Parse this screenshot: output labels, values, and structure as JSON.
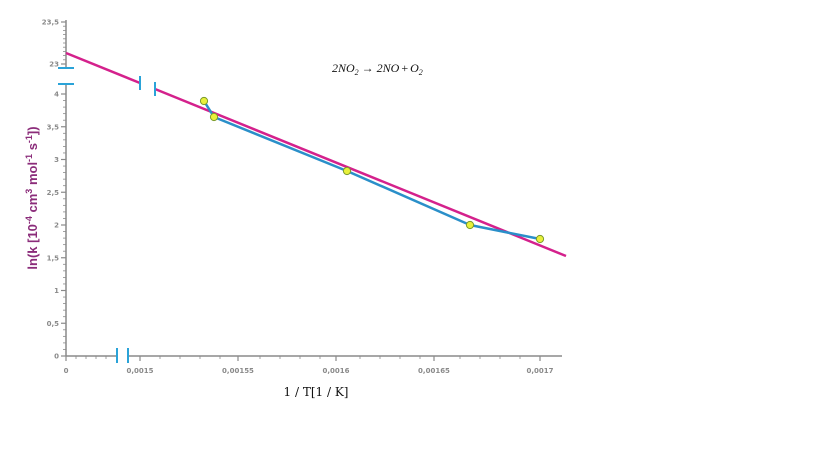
{
  "chart_data": {
    "type": "scatter",
    "annotation": {
      "lhs": "2NO",
      "lhs_sub": "2",
      "arrow": "→",
      "rhs1": "2NO",
      "plus": "+",
      "rhs2": "O",
      "rhs2_sub": "2"
    },
    "xlabel": "1 / T[1 / K]",
    "ylabel_parts": {
      "main": "ln(k [10",
      "sup1": "-4",
      "unit": " cm",
      "sup2": "3",
      "unit2": " mol",
      "sup3": "-1",
      "unit3": " s",
      "sup4": "-1",
      "close": "])"
    },
    "x_ticks": [
      "0",
      "0,0015",
      "0,00155",
      "0,0016",
      "0,00165",
      "0,0017"
    ],
    "y_ticks_lower": [
      "0",
      "0,5",
      "1",
      "1,5",
      "2",
      "2,5",
      "3",
      "3,5",
      "4"
    ],
    "y_ticks_upper": [
      "23",
      "23,5"
    ],
    "xlim": [
      0.00145,
      0.0017
    ],
    "ylim": [
      0,
      4.2
    ],
    "axis_break": true,
    "series": [
      {
        "type": "line",
        "color": "#2a8fc9",
        "points": [
          {
            "x": 0.001535,
            "y": 3.93
          },
          {
            "x": 0.001538,
            "y": 3.7
          },
          {
            "x": 0.001597,
            "y": 2.86
          },
          {
            "x": 0.001658,
            "y": 2.03
          },
          {
            "x": 0.001693,
            "y": 1.8
          }
        ]
      },
      {
        "type": "fit",
        "color": "#d4218c",
        "points": [
          {
            "x": 0.00145,
            "y": 4.45
          },
          {
            "x": 0.001703,
            "y": 1.55
          }
        ]
      }
    ],
    "marker_fill": "#e8f03a",
    "marker_stroke": "#7a9a2a",
    "axis_color": "#8a8a8a",
    "break_color": "#2aa3d8"
  }
}
